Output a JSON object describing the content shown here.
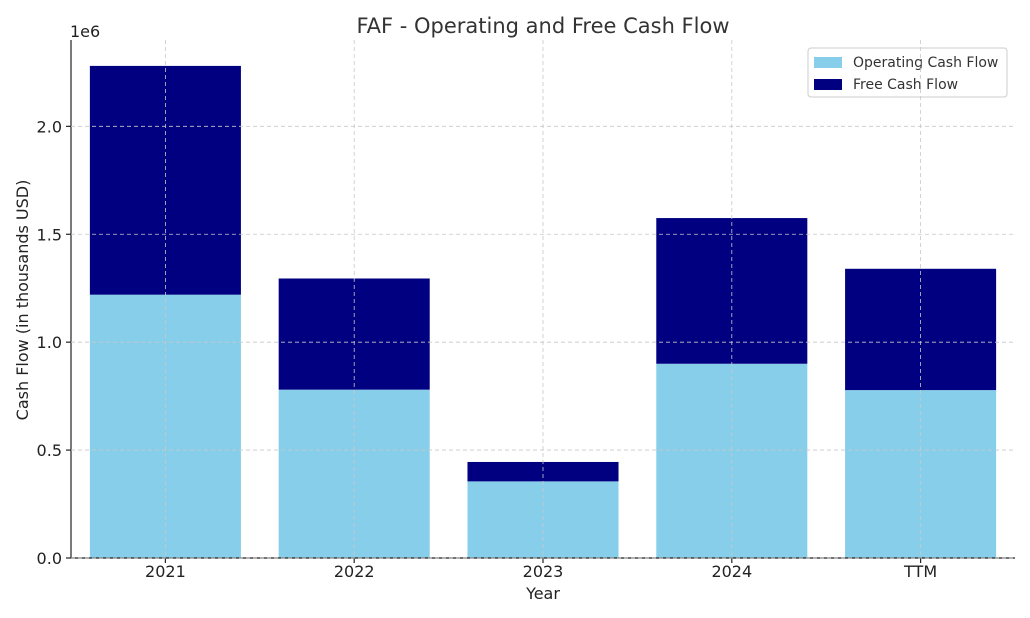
{
  "chart_data": {
    "type": "bar",
    "stacked": true,
    "title": "FAF - Operating and Free Cash Flow",
    "xlabel": "Year",
    "ylabel": "Cash Flow (in thousands USD)",
    "y_offset_label": "1e6",
    "categories": [
      "2021",
      "2022",
      "2023",
      "2024",
      "TTM"
    ],
    "series": [
      {
        "name": "Operating Cash Flow",
        "color": "#87ceeb",
        "values": [
          1220000,
          780000,
          355000,
          900000,
          778000
        ]
      },
      {
        "name": "Free Cash Flow",
        "color": "#000080",
        "values": [
          1060000,
          515000,
          90000,
          675000,
          562000
        ]
      }
    ],
    "ylim": [
      0,
      2400000
    ],
    "yticks": [
      0,
      500000,
      1000000,
      1500000,
      2000000
    ],
    "ytick_labels": [
      "0.0",
      "0.5",
      "1.0",
      "1.5",
      "2.0"
    ],
    "grid": true,
    "legend_position": "top-right"
  }
}
